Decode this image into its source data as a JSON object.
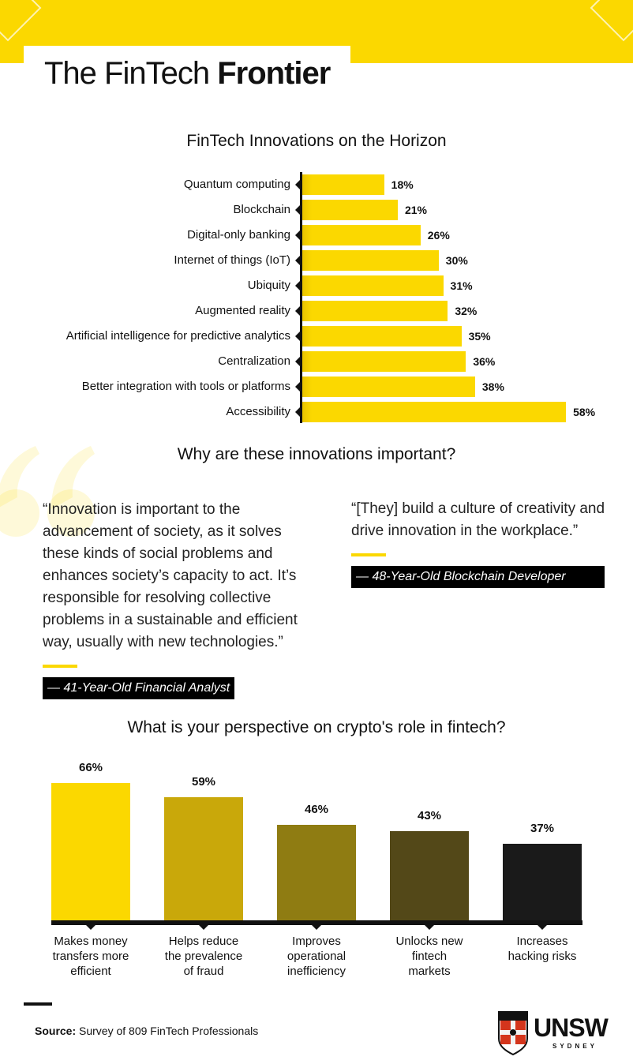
{
  "header": {
    "title_light": "The FinTech",
    "title_bold": "Frontier"
  },
  "colors": {
    "accent": "#fbd800",
    "dark": "#111111"
  },
  "chart_data": [
    {
      "type": "bar",
      "orientation": "horizontal",
      "title": "FinTech Innovations on the Horizon",
      "categories": [
        "Quantum computing",
        "Blockchain",
        "Digital-only banking",
        "Internet of things (IoT)",
        "Ubiquity",
        "Augmented reality",
        "Artificial intelligence for predictive analytics",
        "Centralization",
        "Better integration with tools or platforms",
        "Accessibility"
      ],
      "values": [
        18,
        21,
        26,
        30,
        31,
        32,
        35,
        36,
        38,
        58
      ],
      "labels": [
        "18%",
        "21%",
        "26%",
        "30%",
        "31%",
        "32%",
        "35%",
        "36%",
        "38%",
        "58%"
      ]
    },
    {
      "type": "bar",
      "orientation": "vertical",
      "title": "What is your perspective on crypto's role in fintech?",
      "categories": [
        [
          "Makes money",
          "transfers more",
          "efficient"
        ],
        [
          "Helps reduce",
          "the prevalence",
          "of fraud"
        ],
        [
          "Improves",
          "operational",
          "inefficiency"
        ],
        [
          "Unlocks new",
          "fintech",
          "markets"
        ],
        [
          "Increases",
          "hacking risks"
        ]
      ],
      "values": [
        66,
        59,
        46,
        43,
        37
      ],
      "labels": [
        "66%",
        "59%",
        "46%",
        "43%",
        "37%"
      ],
      "colors": [
        "#fbd800",
        "#c9a80a",
        "#8f7c12",
        "#534818",
        "#1a1a1a"
      ]
    }
  ],
  "quotes": {
    "heading": "Why are these innovations important?",
    "left": {
      "text": "“Innovation is important to the advancement of society, as it solves these kinds of social problems and enhances society’s capacity to act. It’s responsible for resolving collective problems in a sustainable and efficient way, usually with new technologies.”",
      "author": "— 41-Year-Old Financial Analyst"
    },
    "right": {
      "text": "“[They] build a culture of creativity and drive innovation in the workplace.”",
      "author": "— 48-Year-Old Blockchain Developer"
    }
  },
  "footer": {
    "source_label": "Source:",
    "source_text": "Survey of 809 FinTech Professionals",
    "logo_name": "UNSW",
    "logo_sub": "SYDNEY"
  }
}
